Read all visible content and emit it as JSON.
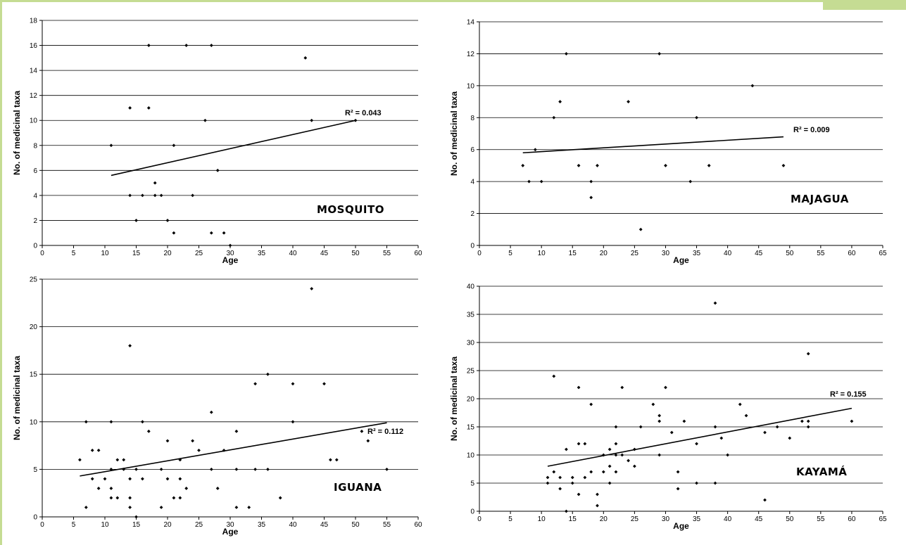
{
  "chart_data": [
    {
      "type": "scatter",
      "panel_label": "MOSQUITO",
      "xlabel": "Age",
      "ylabel": "No. of medicinal taxa",
      "xlim": [
        0,
        60
      ],
      "ylim": [
        0,
        18
      ],
      "xticks": [
        0,
        5,
        10,
        15,
        20,
        25,
        30,
        35,
        40,
        45,
        50,
        55,
        60
      ],
      "yticks": [
        0,
        2,
        4,
        6,
        8,
        10,
        12,
        14,
        16,
        18
      ],
      "grid": "horizontal",
      "r2_label": "R² = 0.043",
      "trendline": [
        [
          11,
          5.6
        ],
        [
          50,
          10
        ]
      ],
      "points": [
        [
          11,
          8
        ],
        [
          14,
          11
        ],
        [
          14,
          4
        ],
        [
          15,
          2
        ],
        [
          16,
          4
        ],
        [
          17,
          16
        ],
        [
          17,
          11
        ],
        [
          18,
          5
        ],
        [
          18,
          4
        ],
        [
          19,
          4
        ],
        [
          20,
          2
        ],
        [
          21,
          8
        ],
        [
          21,
          1
        ],
        [
          23,
          16
        ],
        [
          24,
          4
        ],
        [
          26,
          10
        ],
        [
          27,
          16
        ],
        [
          27,
          1
        ],
        [
          28,
          6
        ],
        [
          29,
          1
        ],
        [
          30,
          0
        ],
        [
          42,
          15
        ],
        [
          43,
          10
        ],
        [
          50,
          10
        ]
      ]
    },
    {
      "type": "scatter",
      "panel_label": "MAJAGUA",
      "xlabel": "Age",
      "ylabel": "No. of medicinal taxa",
      "xlim": [
        0,
        65
      ],
      "ylim": [
        0,
        14
      ],
      "xticks": [
        0,
        5,
        10,
        15,
        20,
        25,
        30,
        35,
        40,
        45,
        50,
        55,
        60,
        65
      ],
      "yticks": [
        0,
        2,
        4,
        6,
        8,
        10,
        12,
        14
      ],
      "grid": "horizontal",
      "r2_label": "R² = 0.009",
      "trendline": [
        [
          7,
          5.8
        ],
        [
          49,
          6.8
        ]
      ],
      "points": [
        [
          7,
          5
        ],
        [
          8,
          4
        ],
        [
          9,
          6
        ],
        [
          10,
          4
        ],
        [
          12,
          8
        ],
        [
          13,
          9
        ],
        [
          14,
          12
        ],
        [
          16,
          5
        ],
        [
          18,
          4
        ],
        [
          18,
          3
        ],
        [
          19,
          5
        ],
        [
          24,
          9
        ],
        [
          26,
          1
        ],
        [
          29,
          12
        ],
        [
          30,
          5
        ],
        [
          34,
          4
        ],
        [
          35,
          8
        ],
        [
          37,
          5
        ],
        [
          44,
          10
        ],
        [
          49,
          5
        ]
      ]
    },
    {
      "type": "scatter",
      "panel_label": "IGUANA",
      "xlabel": "Age",
      "ylabel": "No. of medicinal taxa",
      "xlim": [
        0,
        60
      ],
      "ylim": [
        0,
        25
      ],
      "xticks": [
        0,
        5,
        10,
        15,
        20,
        25,
        30,
        35,
        40,
        45,
        50,
        55,
        60
      ],
      "yticks": [
        0,
        5,
        10,
        15,
        20,
        25
      ],
      "grid": "horizontal",
      "r2_label": "R² = 0.112",
      "trendline": [
        [
          6,
          4.3
        ],
        [
          55,
          9.9
        ]
      ],
      "points": [
        [
          6,
          6
        ],
        [
          7,
          10
        ],
        [
          7,
          1
        ],
        [
          8,
          7
        ],
        [
          8,
          4
        ],
        [
          9,
          7
        ],
        [
          9,
          3
        ],
        [
          10,
          4
        ],
        [
          11,
          10
        ],
        [
          11,
          5
        ],
        [
          11,
          3
        ],
        [
          11,
          2
        ],
        [
          12,
          6
        ],
        [
          12,
          2
        ],
        [
          13,
          6
        ],
        [
          13,
          5
        ],
        [
          14,
          18
        ],
        [
          14,
          4
        ],
        [
          14,
          2
        ],
        [
          14,
          1
        ],
        [
          15,
          5
        ],
        [
          15,
          0
        ],
        [
          16,
          10
        ],
        [
          16,
          4
        ],
        [
          17,
          9
        ],
        [
          19,
          5
        ],
        [
          19,
          1
        ],
        [
          20,
          8
        ],
        [
          20,
          4
        ],
        [
          21,
          2
        ],
        [
          22,
          6
        ],
        [
          22,
          4
        ],
        [
          22,
          2
        ],
        [
          23,
          3
        ],
        [
          24,
          8
        ],
        [
          25,
          7
        ],
        [
          27,
          11
        ],
        [
          27,
          5
        ],
        [
          28,
          3
        ],
        [
          29,
          7
        ],
        [
          31,
          9
        ],
        [
          31,
          5
        ],
        [
          31,
          1
        ],
        [
          33,
          1
        ],
        [
          34,
          14
        ],
        [
          34,
          5
        ],
        [
          36,
          15
        ],
        [
          36,
          5
        ],
        [
          38,
          2
        ],
        [
          40,
          14
        ],
        [
          40,
          10
        ],
        [
          43,
          24
        ],
        [
          45,
          14
        ],
        [
          46,
          6
        ],
        [
          47,
          6
        ],
        [
          51,
          9
        ],
        [
          52,
          8
        ],
        [
          55,
          5
        ]
      ]
    },
    {
      "type": "scatter",
      "panel_label": "KAYAMÁ",
      "xlabel": "Age",
      "ylabel": "No. of medicinal taxa",
      "xlim": [
        0,
        65
      ],
      "ylim": [
        0,
        40
      ],
      "xticks": [
        0,
        5,
        10,
        15,
        20,
        25,
        30,
        35,
        40,
        45,
        50,
        55,
        60,
        65
      ],
      "yticks": [
        0,
        5,
        10,
        15,
        20,
        25,
        30,
        35,
        40
      ],
      "grid": "horizontal",
      "r2_label": "R² = 0.155",
      "trendline": [
        [
          11,
          8
        ],
        [
          60,
          18.3
        ]
      ],
      "points": [
        [
          11,
          6
        ],
        [
          11,
          5
        ],
        [
          12,
          24
        ],
        [
          12,
          7
        ],
        [
          13,
          6
        ],
        [
          13,
          4
        ],
        [
          14,
          11
        ],
        [
          14,
          0
        ],
        [
          15,
          6
        ],
        [
          15,
          5
        ],
        [
          16,
          22
        ],
        [
          16,
          12
        ],
        [
          16,
          3
        ],
        [
          17,
          12
        ],
        [
          17,
          6
        ],
        [
          18,
          19
        ],
        [
          18,
          7
        ],
        [
          19,
          3
        ],
        [
          19,
          1
        ],
        [
          20,
          10
        ],
        [
          20,
          7
        ],
        [
          21,
          11
        ],
        [
          21,
          8
        ],
        [
          21,
          5
        ],
        [
          22,
          15
        ],
        [
          22,
          12
        ],
        [
          22,
          10
        ],
        [
          22,
          7
        ],
        [
          23,
          22
        ],
        [
          23,
          10
        ],
        [
          24,
          9
        ],
        [
          25,
          11
        ],
        [
          25,
          8
        ],
        [
          26,
          15
        ],
        [
          28,
          19
        ],
        [
          29,
          17
        ],
        [
          29,
          16
        ],
        [
          29,
          10
        ],
        [
          30,
          22
        ],
        [
          31,
          14
        ],
        [
          32,
          7
        ],
        [
          32,
          4
        ],
        [
          33,
          16
        ],
        [
          35,
          12
        ],
        [
          35,
          5
        ],
        [
          38,
          37
        ],
        [
          38,
          15
        ],
        [
          38,
          5
        ],
        [
          39,
          13
        ],
        [
          40,
          10
        ],
        [
          42,
          19
        ],
        [
          43,
          17
        ],
        [
          46,
          14
        ],
        [
          46,
          2
        ],
        [
          48,
          15
        ],
        [
          50,
          13
        ],
        [
          52,
          16
        ],
        [
          53,
          28
        ],
        [
          53,
          16
        ],
        [
          53,
          15
        ],
        [
          60,
          16
        ]
      ]
    }
  ]
}
